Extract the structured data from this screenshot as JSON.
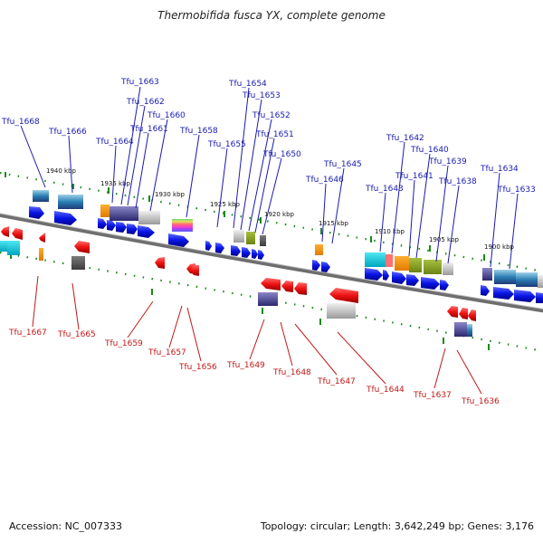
{
  "title": "Thermobifida fusca YX, complete genome",
  "footer": {
    "accession": "Accession: NC_007333",
    "summary": "Topology: circular; Length: 3,642,249 bp; Genes: 3,176"
  },
  "colors": {
    "backbone": "#808080",
    "forward_gene": "#0a14e6",
    "reverse_gene": "#ee1111",
    "tick": "#1a8a1a",
    "label_top": "#1a1ab0",
    "label_bottom": "#c01818"
  },
  "scale_labels": [
    "1940 kbp",
    "1935 kbp",
    "1930 kbp",
    "1925 kbp",
    "1920 kbp",
    "1915 kbp",
    "1910 kbp",
    "1905 kbp",
    "1900 kbp"
  ],
  "top_labels": [
    "Tfu_1668",
    "Tfu_1666",
    "Tfu_1664",
    "Tfu_1663",
    "Tfu_1662",
    "Tfu_1661",
    "Tfu_1660",
    "Tfu_1658",
    "Tfu_1655",
    "Tfu_1654",
    "Tfu_1653",
    "Tfu_1652",
    "Tfu_1651",
    "Tfu_1650",
    "Tfu_1646",
    "Tfu_1645",
    "Tfu_1643",
    "Tfu_1642",
    "Tfu_1641",
    "Tfu_1640",
    "Tfu_1639",
    "Tfu_1638",
    "Tfu_1634",
    "Tfu_1633"
  ],
  "bottom_labels": [
    "Tfu_1667",
    "Tfu_1665",
    "Tfu_1659",
    "Tfu_1657",
    "Tfu_1656",
    "Tfu_1649",
    "Tfu_1648",
    "Tfu_1647",
    "Tfu_1644",
    "Tfu_1637",
    "Tfu_1636"
  ]
}
